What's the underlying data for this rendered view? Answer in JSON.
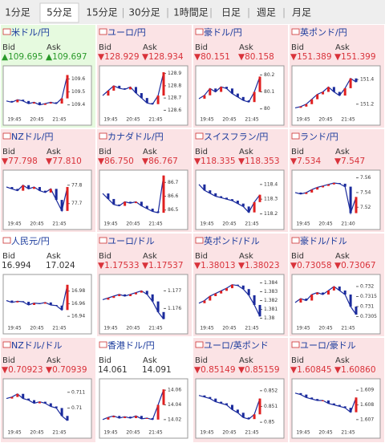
{
  "tabs": {
    "items": [
      "1分足",
      "5分足",
      "15分足",
      "30分足",
      "1時間足",
      "日足",
      "週足",
      "月足"
    ],
    "selected": 1,
    "separator": "|"
  },
  "labels": {
    "bid": "Bid",
    "ask": "Ask"
  },
  "panels": [
    {
      "name": "米ドル/円",
      "bid": "▲109.695",
      "ask": "▲109.697",
      "background": "#e6fadf",
      "price_color": "#2a9a2a",
      "ylim": [
        109.33,
        109.67
      ],
      "yticks": [
        109.6,
        109.5,
        109.4
      ],
      "xticks": [
        "19:45",
        "20:45",
        "21:45"
      ],
      "values": [
        109.43,
        109.42,
        109.44,
        109.43,
        109.41,
        109.42,
        109.4,
        109.41,
        109.42,
        109.41,
        109.45,
        109.63
      ]
    },
    {
      "name": "ユーロ/円",
      "bid": "▼128.929",
      "ask": "▼128.934",
      "background": "#fbe3e5",
      "price_color": "#d9323a",
      "ylim": [
        128.57,
        128.93
      ],
      "yticks": [
        128.9,
        128.8,
        128.7,
        128.6
      ],
      "xticks": [
        "19:45",
        "20:45",
        "21:45"
      ],
      "values": [
        128.72,
        128.76,
        128.8,
        128.78,
        128.77,
        128.79,
        128.74,
        128.7,
        128.66,
        128.65,
        128.72,
        128.91
      ]
    },
    {
      "name": "豪ドル/円",
      "bid": "▼80.151",
      "ask": "▼80.158",
      "background": "#fbe3e5",
      "price_color": "#d9323a",
      "ylim": [
        79.97,
        80.23
      ],
      "yticks": [
        80.2,
        80.1,
        80
      ],
      "xticks": [
        "19:45",
        "20:45",
        "21:45"
      ],
      "values": [
        80.06,
        80.08,
        80.12,
        80.1,
        80.13,
        80.12,
        80.09,
        80.07,
        80.05,
        80.04,
        80.1,
        80.19
      ]
    },
    {
      "name": "英ポンド/円",
      "bid": "▼151.389",
      "ask": "▼151.399",
      "background": "#fbe3e5",
      "price_color": "#d9323a",
      "ylim": [
        151.12,
        151.48
      ],
      "yticks": [
        151.4,
        151.2
      ],
      "xticks": [
        "19:45",
        "20:45",
        "21:45"
      ],
      "values": [
        151.17,
        151.18,
        151.2,
        151.24,
        151.28,
        151.3,
        151.34,
        151.3,
        151.27,
        151.33,
        151.41,
        151.38
      ]
    },
    {
      "name": "NZドル/円",
      "bid": "▼77.798",
      "ask": "▼77.810",
      "background": "#fbe3e5",
      "price_color": "#d9323a",
      "ylim": [
        77.62,
        77.86
      ],
      "yticks": [
        77.8,
        77.7
      ],
      "xticks": [
        "19:45",
        "20:45",
        "21:45"
      ],
      "values": [
        77.79,
        77.78,
        77.77,
        77.8,
        77.78,
        77.79,
        77.77,
        77.76,
        77.78,
        77.72,
        77.66,
        77.79
      ]
    },
    {
      "name": "カナダドル/円",
      "bid": "▼86.750",
      "ask": "▼86.767",
      "background": "#fbe3e5",
      "price_color": "#d9323a",
      "ylim": [
        86.44,
        86.76
      ],
      "yticks": [
        86.7,
        86.6,
        86.5
      ],
      "xticks": [
        "19:45",
        "20:45",
        "21:45"
      ],
      "values": [
        86.62,
        86.58,
        86.54,
        86.53,
        86.56,
        86.55,
        86.56,
        86.53,
        86.51,
        86.49,
        86.48,
        86.75
      ]
    },
    {
      "name": "スイスフラン/円",
      "bid": "▼118.335",
      "ask": "▼118.353",
      "background": "#fbe3e5",
      "price_color": "#d9323a",
      "ylim": [
        118.17,
        118.47
      ],
      "yticks": [
        118.4,
        118.3,
        118.2
      ],
      "xticks": [
        "19:45",
        "20:45",
        "21:45"
      ],
      "values": [
        118.4,
        118.36,
        118.34,
        118.32,
        118.31,
        118.3,
        118.29,
        118.27,
        118.25,
        118.21,
        118.28,
        118.33
      ]
    },
    {
      "name": "ランド/円",
      "bid": "▼7.534",
      "ask": "▼7.547",
      "background": "#fbe3e5",
      "price_color": "#d9323a",
      "ylim": [
        7.505,
        7.565
      ],
      "yticks": [
        7.56,
        7.54,
        7.52
      ],
      "xticks": [
        "19:45",
        "20:45",
        "21:40"
      ],
      "values": [
        7.54,
        7.538,
        7.54,
        7.544,
        7.547,
        7.549,
        7.551,
        7.553,
        7.552,
        7.548,
        7.512,
        7.534
      ]
    },
    {
      "name": "人民元/円",
      "bid": "16.994",
      "ask": "17.024",
      "background": "#ffffff",
      "price_color": "#333333",
      "ylim": [
        16.93,
        17.0
      ],
      "yticks": [
        16.98,
        16.96,
        16.94
      ],
      "xticks": [
        "19:45",
        "20:45",
        "21:45"
      ],
      "values": [
        16.965,
        16.962,
        16.964,
        16.963,
        16.958,
        16.961,
        16.96,
        16.962,
        16.958,
        16.957,
        16.95,
        16.99
      ]
    },
    {
      "name": "ユーロ/ドル",
      "bid": "▼1.17533",
      "ask": "▼1.17537",
      "background": "#fbe3e5",
      "price_color": "#d9323a",
      "ylim": [
        1.1752,
        1.1777
      ],
      "yticks": [
        1.177,
        1.176
      ],
      "xticks": [
        "19:45",
        "20:45",
        "21:45"
      ],
      "values": [
        1.1765,
        1.1766,
        1.1767,
        1.1768,
        1.1767,
        1.1768,
        1.1769,
        1.177,
        1.1768,
        1.1764,
        1.1758,
        1.1754
      ]
    },
    {
      "name": "英ポンド/ドル",
      "bid": "▼1.38013",
      "ask": "▼1.38023",
      "background": "#fbe3e5",
      "price_color": "#d9323a",
      "ylim": [
        1.3795,
        1.3845
      ],
      "yticks": [
        1.384,
        1.383,
        1.382,
        1.381,
        1.38
      ],
      "xticks": [
        "19:45",
        "20:45",
        "21:45"
      ],
      "values": [
        1.3817,
        1.382,
        1.3825,
        1.3828,
        1.3831,
        1.3834,
        1.3838,
        1.3837,
        1.3833,
        1.3826,
        1.3815,
        1.3802
      ]
    },
    {
      "name": "豪ドル/ドル",
      "bid": "▼0.73058",
      "ask": "▼0.73067",
      "background": "#fbe3e5",
      "price_color": "#d9323a",
      "ylim": [
        0.7302,
        0.7324
      ],
      "yticks": [
        0.732,
        0.7315,
        0.731,
        0.7305
      ],
      "xticks": [
        "19:45",
        "20:45",
        "21:45"
      ],
      "values": [
        0.7312,
        0.7314,
        0.7313,
        0.7316,
        0.7317,
        0.7316,
        0.7318,
        0.732,
        0.7318,
        0.7316,
        0.731,
        0.7306
      ]
    },
    {
      "name": "NZドル/ドル",
      "bid": "▼0.70923",
      "ask": "▼0.70939",
      "background": "#fbe3e5",
      "price_color": "#d9323a",
      "ylim": [
        0.7088,
        0.7116
      ],
      "yticks": [
        0.711,
        0.71
      ],
      "xticks": [
        "19:45",
        "20:45",
        "21:45"
      ],
      "values": [
        0.7106,
        0.7107,
        0.7109,
        0.7106,
        0.7105,
        0.7103,
        0.7104,
        0.7103,
        0.7101,
        0.71,
        0.7095,
        0.7092
      ]
    },
    {
      "name": "香港ドル/円",
      "bid": "14.061",
      "ask": "14.091",
      "background": "#ffffff",
      "price_color": "#333333",
      "ylim": [
        14.01,
        14.07
      ],
      "yticks": [
        14.06,
        14.04,
        14.02
      ],
      "xticks": [
        "19:45",
        "20:45",
        "21:45"
      ],
      "values": [
        14.02,
        14.023,
        14.025,
        14.022,
        14.024,
        14.022,
        14.025,
        14.021,
        14.022,
        14.02,
        14.04,
        14.061
      ]
    },
    {
      "name": "ユーロ/英ポンド",
      "bid": "▼0.85149",
      "ask": "▼0.85159",
      "background": "#fbe3e5",
      "price_color": "#d9323a",
      "ylim": [
        0.8497,
        0.8525
      ],
      "yticks": [
        0.852,
        0.851,
        0.85
      ],
      "xticks": [
        "19:45",
        "20:45",
        "21:45"
      ],
      "values": [
        0.8517,
        0.8516,
        0.8515,
        0.8513,
        0.8512,
        0.8511,
        0.8508,
        0.8506,
        0.8503,
        0.8502,
        0.8505,
        0.8515
      ]
    },
    {
      "name": "ユーロ/豪ドル",
      "bid": "▼1.60845",
      "ask": "▼1.60860",
      "background": "#fbe3e5",
      "price_color": "#d9323a",
      "ylim": [
        1.6065,
        1.6095
      ],
      "yticks": [
        1.609,
        1.608,
        1.607
      ],
      "xticks": [
        "19:45",
        "20:45",
        "21:45"
      ],
      "values": [
        1.6088,
        1.6087,
        1.6085,
        1.6084,
        1.6083,
        1.6083,
        1.6081,
        1.608,
        1.6079,
        1.6078,
        1.6075,
        1.6085
      ]
    }
  ]
}
